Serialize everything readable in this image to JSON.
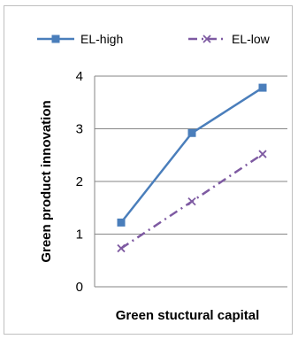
{
  "chart_data": {
    "type": "line",
    "title": "",
    "xlabel": "Green stuctural capital",
    "ylabel": "Green product innovation",
    "ylim": [
      0,
      4
    ],
    "yticks": [
      0,
      1,
      2,
      3,
      4
    ],
    "grid": "horizontal",
    "legend_position": "top",
    "x": [
      1,
      2,
      3
    ],
    "series": [
      {
        "name": "EL-high",
        "values": [
          1.22,
          2.92,
          3.78
        ],
        "color": "#4a7ebb",
        "marker": "square",
        "line_style": "solid"
      },
      {
        "name": "EL-low",
        "values": [
          0.73,
          1.62,
          2.52
        ],
        "color": "#7e5aa2",
        "marker": "x",
        "line_style": "dash-dot"
      }
    ]
  }
}
